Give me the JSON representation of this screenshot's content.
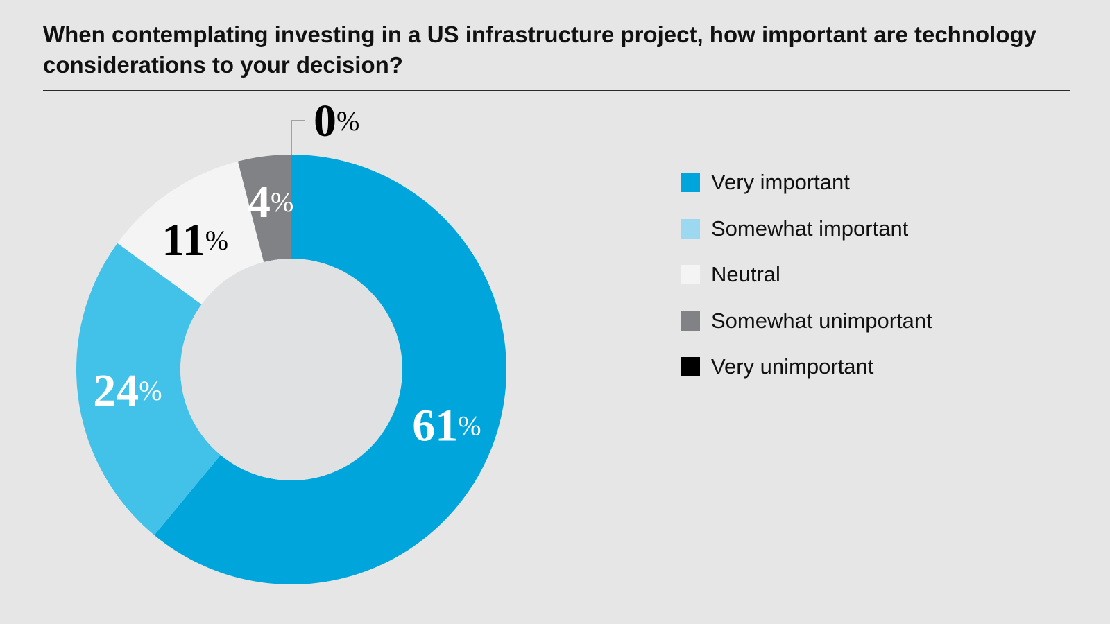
{
  "chart_data": {
    "type": "pie",
    "variant": "donut",
    "title": "When contemplating investing in a US infrastructure project, how important are technology considerations to your decision?",
    "unit": "%",
    "categories": [
      "Very important",
      "Somewhat important",
      "Neutral",
      "Somewhat unimportant",
      "Very unimportant"
    ],
    "values": [
      61,
      24,
      11,
      4,
      0
    ],
    "colors": [
      "#00a5dc",
      "#42c1e9",
      "#f4f4f4",
      "#808285",
      "#000000"
    ],
    "label_colors": [
      "#ffffff",
      "#ffffff",
      "#000000",
      "#ffffff",
      "#000000"
    ],
    "legend_colors": [
      "#00a5dc",
      "#9dd8f1",
      "#f4f4f4",
      "#808285",
      "#000000"
    ],
    "legend_position": "right"
  }
}
